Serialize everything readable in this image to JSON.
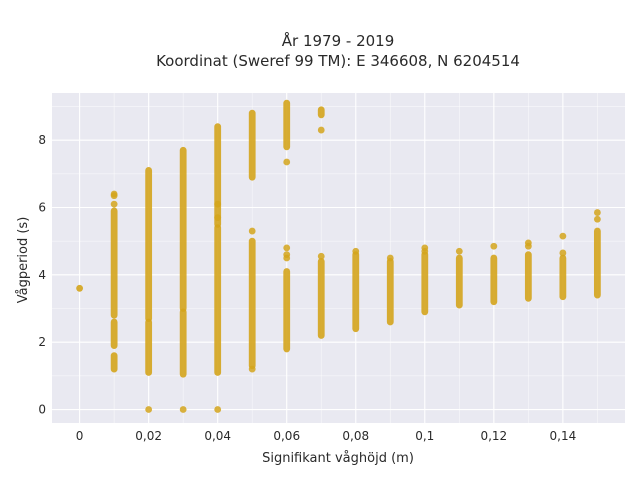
{
  "chart_data": {
    "type": "scatter",
    "title": [
      "År 1979 - 2019",
      "Koordinat (Sweref 99 TM): E 346608, N 6204514"
    ],
    "xlabel": "Signifikant våghöjd (m)",
    "ylabel": "Vågperiod (s)",
    "xlim": [
      -0.008,
      0.158
    ],
    "ylim": [
      -0.4,
      9.4
    ],
    "xticks": [
      0,
      0.02,
      0.04,
      0.06,
      0.08,
      0.1,
      0.12,
      0.14
    ],
    "xtick_labels": [
      "0",
      "0,02",
      "0,04",
      "0,06",
      "0,08",
      "0,1",
      "0,12",
      "0,14"
    ],
    "yticks": [
      0,
      2,
      4,
      6,
      8
    ],
    "ytick_labels": [
      "0",
      "2",
      "4",
      "6",
      "8"
    ],
    "grid": true,
    "background": "#E9E9F1",
    "grid_color": "#FFFFFF",
    "marker_color": "#D4A41C",
    "columns": [
      {
        "x": 0.0,
        "segments": [
          [
            3.6,
            3.6
          ]
        ],
        "points": []
      },
      {
        "x": 0.01,
        "segments": [
          [
            1.2,
            1.6
          ],
          [
            1.9,
            2.6
          ],
          [
            2.8,
            5.9
          ]
        ],
        "points": [
          6.1,
          6.35,
          6.4
        ]
      },
      {
        "x": 0.02,
        "segments": [
          [
            1.1,
            2.6
          ],
          [
            2.7,
            7.1
          ]
        ],
        "points": [
          0.0
        ]
      },
      {
        "x": 0.03,
        "segments": [
          [
            1.05,
            2.9
          ],
          [
            3.0,
            7.7
          ]
        ],
        "points": [
          0.0
        ]
      },
      {
        "x": 0.04,
        "segments": [
          [
            1.1,
            5.4
          ],
          [
            5.5,
            8.4
          ]
        ],
        "points": [
          0.0,
          5.7,
          6.1
        ]
      },
      {
        "x": 0.05,
        "segments": [
          [
            1.3,
            5.0
          ],
          [
            6.9,
            8.8
          ]
        ],
        "points": [
          1.2,
          5.3
        ]
      },
      {
        "x": 0.06,
        "segments": [
          [
            1.8,
            4.1
          ],
          [
            7.8,
            9.1
          ]
        ],
        "points": [
          4.5,
          4.6,
          4.8,
          7.35
        ]
      },
      {
        "x": 0.07,
        "segments": [
          [
            2.2,
            4.4
          ],
          [
            8.75,
            8.9
          ]
        ],
        "points": [
          4.55,
          8.3
        ]
      },
      {
        "x": 0.08,
        "segments": [
          [
            2.4,
            4.6
          ]
        ],
        "points": [
          4.7
        ]
      },
      {
        "x": 0.09,
        "segments": [
          [
            2.6,
            4.4
          ]
        ],
        "points": [
          4.5
        ]
      },
      {
        "x": 0.1,
        "segments": [
          [
            2.9,
            4.6
          ]
        ],
        "points": [
          4.7,
          4.8
        ]
      },
      {
        "x": 0.11,
        "segments": [
          [
            3.1,
            4.5
          ]
        ],
        "points": [
          4.7
        ]
      },
      {
        "x": 0.12,
        "segments": [
          [
            3.2,
            4.5
          ]
        ],
        "points": [
          4.85
        ]
      },
      {
        "x": 0.13,
        "segments": [
          [
            3.3,
            4.6
          ]
        ],
        "points": [
          4.85,
          4.95
        ]
      },
      {
        "x": 0.14,
        "segments": [
          [
            3.35,
            4.5
          ]
        ],
        "points": [
          4.65,
          5.15
        ]
      },
      {
        "x": 0.15,
        "segments": [
          [
            3.4,
            5.3
          ]
        ],
        "points": [
          5.65,
          5.85
        ]
      }
    ]
  }
}
